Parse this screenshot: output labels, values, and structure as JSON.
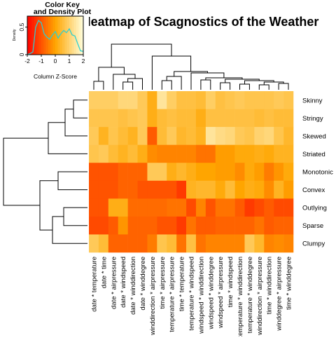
{
  "chart_data": {
    "type": "heatmap",
    "title": "Heatmap of Scagnostics of the Weather",
    "rows": [
      "Skinny",
      "Stringy",
      "Skewed",
      "Striated",
      "Monotonic",
      "Convex",
      "Outlying",
      "Sparse",
      "Clumpy"
    ],
    "columns": [
      "date * temperature",
      "date * time",
      "date * airpressure",
      "date * windspeed",
      "date * winddirection",
      "date * winddegree",
      "winddirection * airpressure",
      "time * airpressure",
      "temperature * airpressure",
      "time * temperature",
      "temperature * windspeed",
      "windspeed * winddirection",
      "windspeed * winddegree",
      "windspeed * airpressure",
      "time * windspeed",
      "temperature * winddirection",
      "temperature * winddegree",
      "winddirection * airpressure",
      "time * winddirection",
      "winddegree * airpressure",
      "time * winddegree"
    ],
    "values": [
      [
        0.9,
        0.9,
        0.9,
        1.1,
        1.1,
        0.8,
        0.2,
        1.4,
        0.9,
        0.6,
        0.6,
        0.5,
        0.9,
        0.6,
        0.7,
        0.8,
        0.7,
        0.7,
        0.7,
        0.8,
        0.7
      ],
      [
        0.7,
        0.7,
        0.7,
        0.6,
        0.7,
        0.8,
        0.2,
        0.5,
        0.6,
        0.5,
        0.5,
        0.2,
        0.6,
        0.6,
        0.6,
        0.6,
        0.6,
        0.5,
        0.6,
        0.5,
        0.5
      ],
      [
        0.8,
        0.3,
        0.7,
        0.5,
        0.3,
        0.8,
        -0.9,
        0.5,
        0.8,
        0.4,
        0.5,
        0.3,
        1.4,
        1.2,
        1.1,
        0.8,
        0.7,
        1.0,
        1.1,
        0.7,
        0.4
      ],
      [
        0.7,
        0.8,
        0.5,
        0.3,
        0.5,
        0.2,
        -0.3,
        -0.4,
        -0.4,
        -0.4,
        -0.4,
        -0.6,
        -0.6,
        -0.1,
        -0.1,
        0.1,
        0.1,
        0.2,
        0.1,
        0.3,
        0.3
      ],
      [
        -1.0,
        -1.0,
        -1.0,
        -0.8,
        -0.8,
        -0.8,
        0.8,
        0.8,
        0.2,
        0.4,
        0.2,
        0.0,
        0.0,
        -0.1,
        -0.1,
        -0.3,
        0.1,
        -0.1,
        -0.5,
        -0.2,
        0.1
      ],
      [
        -1.0,
        -1.0,
        -1.0,
        -0.8,
        -0.8,
        -1.0,
        -1.0,
        -1.0,
        -1.0,
        -1.3,
        0.3,
        0.4,
        0.4,
        0.1,
        0.5,
        0.0,
        0.2,
        0.1,
        -0.3,
        0.3,
        -0.1
      ],
      [
        -1.0,
        -1.0,
        0.2,
        0.2,
        -0.7,
        -0.7,
        -0.7,
        -0.7,
        -0.6,
        -0.6,
        -1.1,
        -0.4,
        -1.0,
        -0.6,
        -0.6,
        -0.9,
        -1.3,
        -1.1,
        -0.9,
        -1.1,
        -1.1
      ],
      [
        -1.1,
        -1.1,
        -0.9,
        -0.2,
        -0.8,
        -0.8,
        -0.8,
        -1.0,
        -1.0,
        -1.3,
        -0.6,
        -0.9,
        -0.9,
        -0.8,
        -0.8,
        -0.8,
        -0.8,
        -0.6,
        -0.9,
        -0.8,
        -0.8
      ],
      [
        0.8,
        0.5,
        -0.8,
        -0.8,
        -0.8,
        -0.8,
        -0.5,
        0.7,
        0.5,
        -0.6,
        0.6,
        -0.6,
        -0.4,
        -0.4,
        -0.4,
        -0.4,
        0.8,
        0.4,
        -0.4,
        -0.3,
        -0.4
      ]
    ],
    "color_key": {
      "title_line1": "Color Key",
      "title_line2": "and Density Plot",
      "xlabel": "Column Z-Score",
      "ylabel": "Density",
      "xticks": [
        "-2",
        "-1",
        "0",
        "1",
        "2"
      ],
      "yticks": [
        "0",
        "0.5"
      ],
      "xlim": [
        -2,
        2
      ],
      "ylim": [
        0,
        0.7
      ],
      "scale_low": "#ff0000",
      "scale_mid": "#ffa500",
      "scale_high": "#ffffdd",
      "density_color": "#2fcfcf",
      "density": [
        0.0,
        0.02,
        0.05,
        0.5,
        0.62,
        0.58,
        0.38,
        0.32,
        0.28,
        0.36,
        0.42,
        0.3,
        0.38,
        0.44,
        0.4,
        0.47,
        0.36,
        0.34,
        0.2,
        0.07,
        0.06
      ]
    },
    "legend": "top-left"
  }
}
